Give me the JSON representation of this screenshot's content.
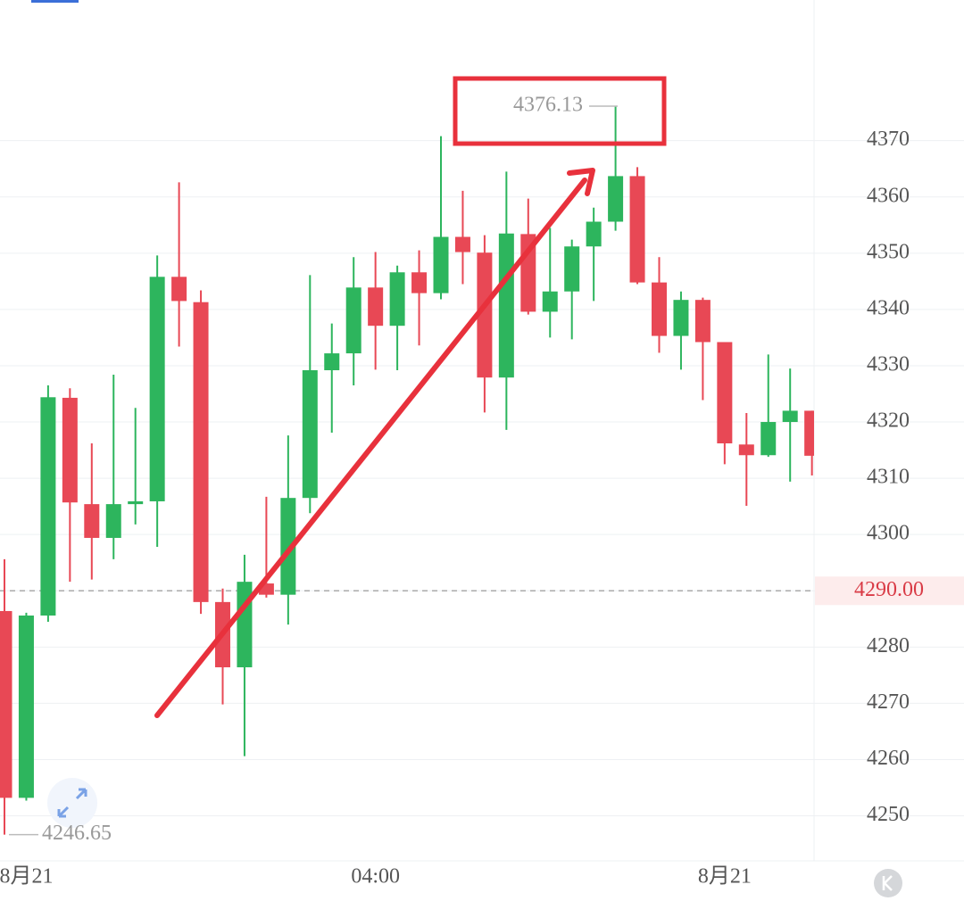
{
  "chart_data": {
    "type": "candlestick",
    "categories": [
      null,
      "8月21",
      null,
      null,
      null,
      null,
      null,
      null,
      null,
      null,
      null,
      null,
      null,
      null,
      null,
      null,
      null,
      "04:00",
      null,
      null,
      null,
      null,
      null,
      null,
      null,
      null,
      null,
      null,
      null,
      null,
      null,
      null,
      null,
      "8月21",
      null,
      null,
      null,
      null
    ],
    "open": [
      4286.4,
      4253.2,
      4285.6,
      4324.3,
      4305.4,
      4299.4,
      4305.4,
      4305.9,
      4345.8,
      4341.3,
      4288.0,
      4276.4,
      4291.3,
      4289.3,
      4306.5,
      4329.2,
      4332.2,
      4343.9,
      4337.1,
      4346.6,
      4342.9,
      4352.9,
      4350.1,
      4327.9,
      4353.4,
      4339.6,
      4343.2,
      4351.2,
      4355.6,
      4363.7,
      4344.8,
      4335.3,
      4341.7,
      4334.2,
      4316.0,
      4314.1,
      4320.0,
      4322.0
    ],
    "high": [
      4295.6,
      4286.1,
      4326.5,
      4326.0,
      4316.2,
      4328.4,
      4322.5,
      4349.6,
      4362.6,
      4343.4,
      4290.4,
      4296.4,
      4306.7,
      4317.6,
      4346.1,
      4337.5,
      4349.3,
      4350.2,
      4347.8,
      4350.5,
      4370.8,
      4361.1,
      4353.2,
      4364.5,
      4359.7,
      4354.5,
      4352.4,
      4358.1,
      4376.13,
      4365.3,
      4349.3,
      4343.2,
      4342.1,
      4334.2,
      4321.6,
      4332.0,
      4329.5,
      4322.0
    ],
    "low": [
      4246.65,
      4252.7,
      4284.5,
      4291.6,
      4292.0,
      4295.6,
      4301.8,
      4297.8,
      4333.4,
      4285.9,
      4269.8,
      4260.6,
      4288.8,
      4284.0,
      4303.8,
      4318.1,
      4326.5,
      4329.3,
      4329.2,
      4333.6,
      4341.8,
      4344.5,
      4321.7,
      4318.6,
      4339.1,
      4335.0,
      4334.7,
      4341.5,
      4354.0,
      4344.5,
      4332.3,
      4329.3,
      4323.9,
      4312.5,
      4305.1,
      4313.8,
      4309.4,
      4310.5
    ],
    "close": [
      4253.2,
      4285.6,
      4324.4,
      4305.7,
      4299.4,
      4305.4,
      4305.9,
      4345.8,
      4341.5,
      4288.0,
      4276.4,
      4291.6,
      4289.3,
      4306.5,
      4329.2,
      4332.2,
      4343.9,
      4337.1,
      4346.6,
      4342.9,
      4352.9,
      4350.2,
      4327.9,
      4353.5,
      4339.6,
      4343.2,
      4351.2,
      4355.6,
      4363.7,
      4344.8,
      4335.3,
      4341.7,
      4334.2,
      4316.2,
      4314.1,
      4320.0,
      4322.0,
      4314.0
    ],
    "up_color": "#2db55d",
    "down_color": "#e84855",
    "ylim": [
      4242,
      4395
    ],
    "yticks": [
      4250,
      4260,
      4270,
      4280,
      4290,
      4300,
      4310,
      4320,
      4330,
      4340,
      4350,
      4360,
      4370
    ],
    "grid": true,
    "last_price": {
      "value": 4290,
      "label": "4290.00"
    },
    "max_label": 4376.13,
    "min_label": 4246.65
  }
}
